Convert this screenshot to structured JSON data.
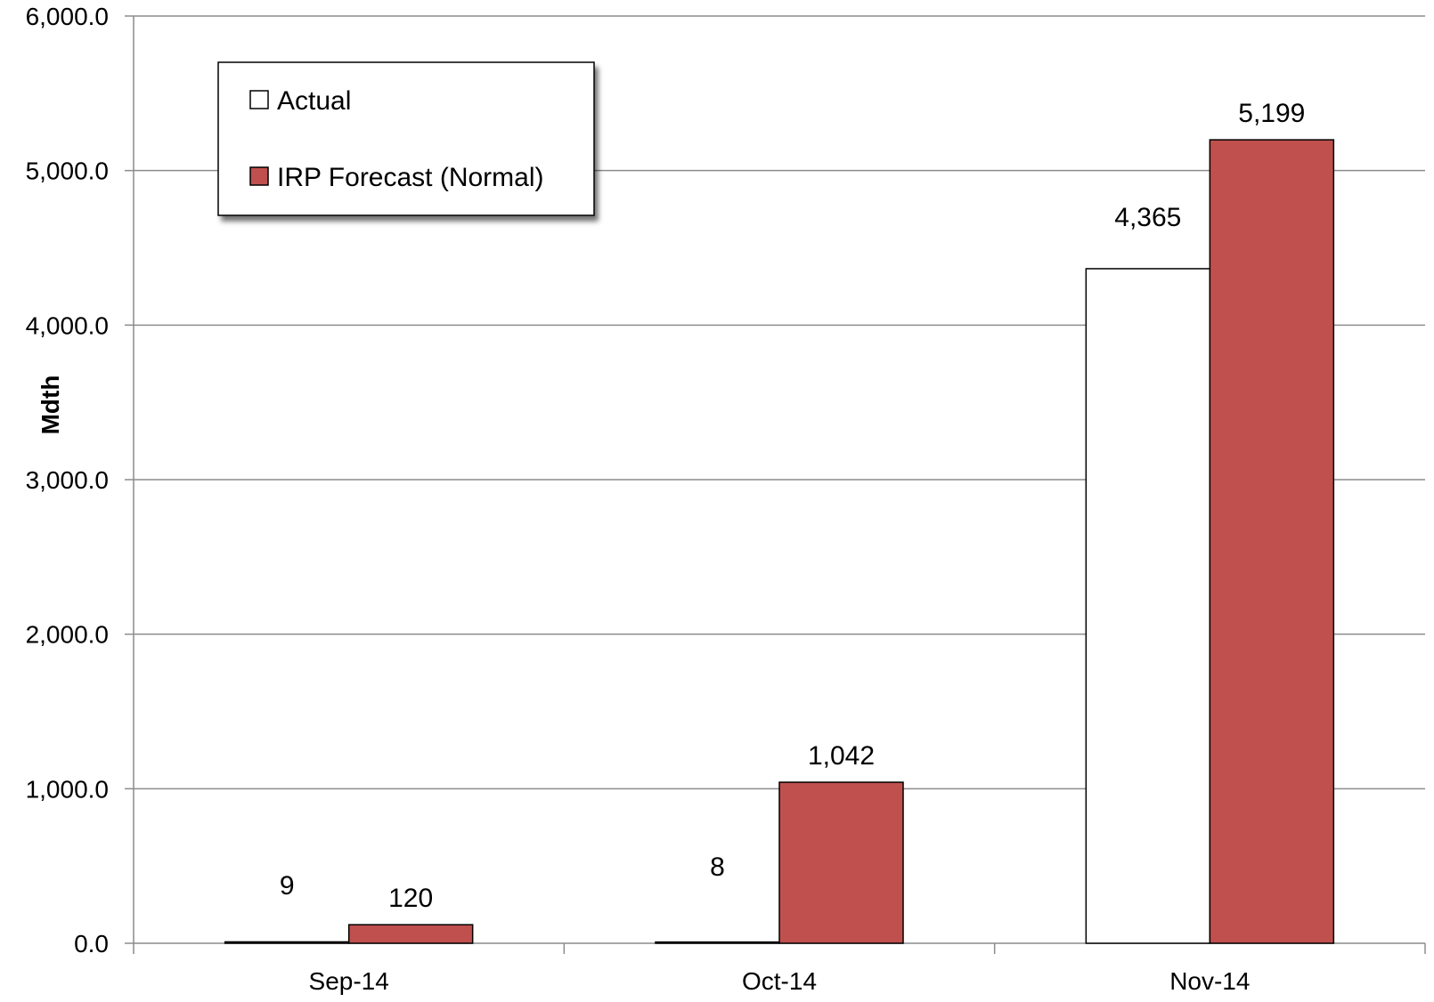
{
  "chart_data": {
    "type": "bar",
    "categories": [
      "Sep-14",
      "Oct-14",
      "Nov-14"
    ],
    "series": [
      {
        "name": "Actual",
        "values": [
          9,
          8,
          4365
        ],
        "labels": [
          "9",
          "8",
          "4,365"
        ],
        "color": "#ffffff"
      },
      {
        "name": "IRP Forecast (Normal)",
        "values": [
          120,
          1042,
          5199
        ],
        "labels": [
          "120",
          "1,042",
          "5,199"
        ],
        "color": "#c0504d"
      }
    ],
    "ylabel": "Mdth",
    "ylim": [
      0,
      6000
    ],
    "yticks": [
      0,
      1000,
      2000,
      3000,
      4000,
      5000,
      6000
    ],
    "ytick_labels": [
      "0.0",
      "1,000.0",
      "2,000.0",
      "3,000.0",
      "4,000.0",
      "5,000.0",
      "6,000.0"
    ],
    "grid": true,
    "legend_position": "top-left",
    "gridline_color": "#8c8c8c"
  }
}
